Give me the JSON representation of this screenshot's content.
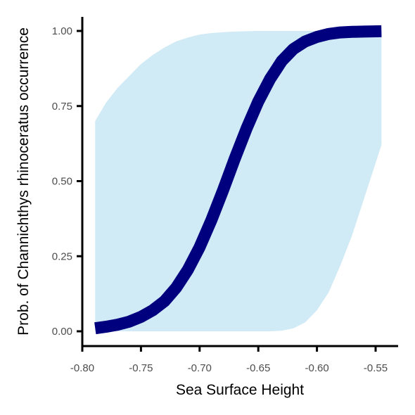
{
  "chart_data": {
    "type": "line",
    "xlabel": "Sea Surface Height",
    "ylabel": "Prob. of  Channichthys rhinoceratus  occurrence",
    "xlim": [
      -0.8,
      -0.53
    ],
    "ylim": [
      -0.05,
      1.05
    ],
    "x_ticks": [
      -0.8,
      -0.75,
      -0.7,
      -0.65,
      -0.6,
      -0.55
    ],
    "x_tick_labels": [
      "-0.80",
      "-0.75",
      "-0.70",
      "-0.65",
      "-0.60",
      "-0.55"
    ],
    "y_ticks": [
      0.0,
      0.25,
      0.5,
      0.75,
      1.0
    ],
    "y_tick_labels": [
      "0.00",
      "0.25",
      "0.50",
      "0.75",
      "1.00"
    ],
    "grid": false,
    "colors": {
      "line": "#00007f",
      "band": "#d0eaf6",
      "axis": "#000000"
    },
    "series": [
      {
        "x": [
          -0.789,
          -0.78,
          -0.77,
          -0.76,
          -0.75,
          -0.74,
          -0.73,
          -0.72,
          -0.71,
          -0.7,
          -0.69,
          -0.68,
          -0.67,
          -0.66,
          -0.65,
          -0.64,
          -0.63,
          -0.62,
          -0.61,
          -0.6,
          -0.59,
          -0.58,
          -0.57,
          -0.56,
          -0.545
        ],
        "y": [
          0.01,
          0.015,
          0.022,
          0.032,
          0.048,
          0.07,
          0.1,
          0.145,
          0.205,
          0.28,
          0.37,
          0.47,
          0.575,
          0.675,
          0.765,
          0.84,
          0.9,
          0.94,
          0.965,
          0.98,
          0.99,
          0.995,
          0.997,
          0.998,
          0.999
        ],
        "lower": [
          0.0,
          0.0,
          0.0,
          0.0,
          0.0,
          0.0,
          0.0,
          0.0,
          0.0,
          0.0,
          0.0,
          0.0,
          0.0,
          0.0,
          0.0,
          0.0,
          0.002,
          0.01,
          0.03,
          0.07,
          0.13,
          0.22,
          0.32,
          0.44,
          0.62
        ],
        "upper": [
          0.7,
          0.76,
          0.81,
          0.85,
          0.89,
          0.92,
          0.945,
          0.965,
          0.978,
          0.988,
          0.993,
          0.996,
          0.998,
          0.999,
          1.0,
          1.0,
          1.0,
          1.0,
          1.0,
          1.0,
          1.0,
          1.0,
          1.0,
          1.0,
          1.0
        ]
      }
    ]
  }
}
